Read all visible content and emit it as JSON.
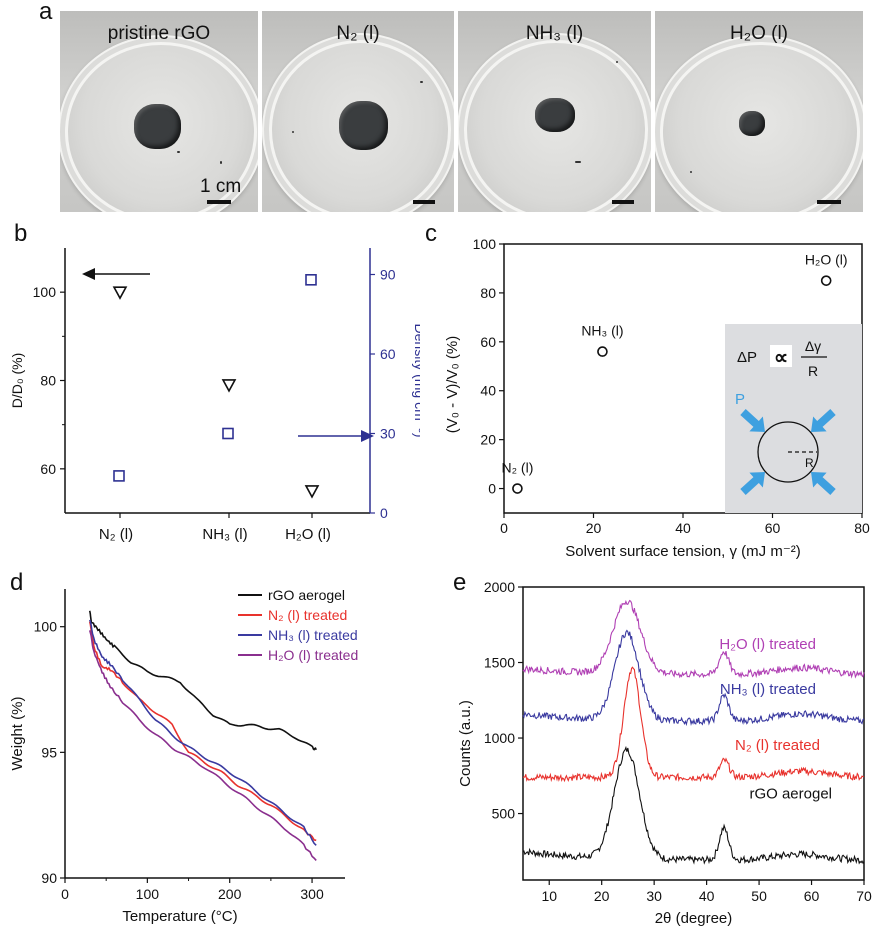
{
  "panel_a": {
    "label": "a",
    "photos": [
      {
        "title": "pristine rGO"
      },
      {
        "title": "N₂ (l)"
      },
      {
        "title": "NH₃ (l)"
      },
      {
        "title": "H₂O (l)"
      }
    ],
    "scale_bar_text": "1 cm",
    "colors": {
      "sample": "#3a3d3f",
      "background": "#c8c8c6"
    }
  },
  "panel_b": {
    "label": "b"
  },
  "panel_c": {
    "label": "c",
    "inset_formula": {
      "lhs": "ΔP",
      "numerator": "Δγ",
      "denominator": "R",
      "radius_label": "R",
      "pressure_label": "P"
    }
  },
  "panel_d": {
    "label": "d"
  },
  "panel_e": {
    "label": "e"
  },
  "chart_data": [
    {
      "id": "b",
      "type": "scatter",
      "categories": [
        "N₂ (l)",
        "NH₃ (l)",
        "H₂O (l)"
      ],
      "ylabel": "D/D₀ (%)",
      "ylabel_right": "Density (mg cm⁻³)",
      "ylim": [
        50,
        110
      ],
      "yticks": [
        60,
        80,
        100
      ],
      "ylim_right": [
        0,
        100
      ],
      "yticks_right": [
        0,
        30,
        60,
        90
      ],
      "series": [
        {
          "axis": "left",
          "marker": "triangle-down",
          "color": "#111111",
          "values": [
            100,
            79,
            55
          ]
        },
        {
          "axis": "right",
          "marker": "square",
          "color": "#2e3192",
          "values": [
            14,
            30,
            88
          ]
        }
      ],
      "arrows": [
        {
          "direction": "left",
          "color": "#111111"
        },
        {
          "direction": "right",
          "color": "#2e3192"
        }
      ]
    },
    {
      "id": "c",
      "type": "scatter",
      "xlabel": "Solvent surface tension, γ (mJ m⁻²)",
      "ylabel": "(V₀ - V)/V₀ (%)",
      "xlim": [
        0,
        80
      ],
      "ylim": [
        -10,
        100
      ],
      "xticks": [
        0,
        20,
        40,
        60,
        80
      ],
      "yticks": [
        0,
        20,
        40,
        60,
        80,
        100
      ],
      "points": [
        {
          "x": 3,
          "y": 0,
          "label": "N₂ (l)"
        },
        {
          "x": 22,
          "y": 56,
          "label": "NH₃ (l)"
        },
        {
          "x": 72,
          "y": 85,
          "label": "H₂O (l)"
        }
      ]
    },
    {
      "id": "d",
      "type": "line",
      "xlabel": "Temperature (°C)",
      "ylabel": "Weight (%)",
      "xlim": [
        0,
        340
      ],
      "ylim": [
        90,
        101.5
      ],
      "xticks": [
        0,
        100,
        200,
        300
      ],
      "yticks": [
        90,
        95,
        100
      ],
      "series": [
        {
          "name": "rGO aerogel",
          "color": "#111111",
          "x": [
            30,
            32,
            40,
            50,
            60,
            80,
            100,
            120,
            140,
            160,
            180,
            200,
            220,
            240,
            260,
            280,
            300,
            305
          ],
          "y": [
            100.6,
            100.2,
            99.9,
            99.5,
            99.2,
            98.6,
            98.2,
            98.0,
            97.8,
            97.1,
            96.5,
            96.1,
            96.1,
            96.0,
            95.9,
            95.6,
            95.2,
            95.1
          ]
        },
        {
          "name": "N₂ (l) treated",
          "color": "#e8322d",
          "x": [
            30,
            35,
            45,
            55,
            70,
            90,
            110,
            130,
            150,
            170,
            190,
            210,
            230,
            250,
            270,
            290,
            305
          ],
          "y": [
            100.2,
            99.2,
            98.4,
            98.3,
            97.8,
            97.1,
            96.6,
            96.1,
            95.0,
            94.6,
            94.2,
            93.7,
            93.3,
            92.9,
            92.4,
            91.9,
            91.5
          ]
        },
        {
          "name": "NH₃ (l) treated",
          "color": "#3a3aa0",
          "x": [
            30,
            35,
            45,
            55,
            70,
            90,
            110,
            130,
            150,
            170,
            190,
            210,
            230,
            250,
            270,
            290,
            305
          ],
          "y": [
            100.3,
            99.5,
            98.8,
            98.5,
            97.9,
            97.1,
            96.3,
            95.7,
            95.2,
            94.8,
            94.4,
            94.0,
            93.5,
            93.0,
            92.5,
            92.0,
            91.3
          ]
        },
        {
          "name": "H₂O (l) treated",
          "color": "#8a2f8e",
          "x": [
            30,
            35,
            45,
            55,
            70,
            90,
            110,
            130,
            150,
            170,
            190,
            210,
            230,
            250,
            270,
            290,
            305
          ],
          "y": [
            99.9,
            99.0,
            98.2,
            97.6,
            97.0,
            96.3,
            95.7,
            95.2,
            94.8,
            94.4,
            93.9,
            93.4,
            92.9,
            92.4,
            91.9,
            91.3,
            90.7
          ]
        }
      ]
    },
    {
      "id": "e",
      "type": "line",
      "xlabel": "2θ (degree)",
      "ylabel": "Counts (a.u.)",
      "xlim": [
        5,
        70
      ],
      "ylim": [
        60,
        2000
      ],
      "xticks": [
        10,
        20,
        30,
        40,
        50,
        60,
        70
      ],
      "yticks": [
        500,
        1000,
        1500,
        2000
      ],
      "series": [
        {
          "name": "rGO aerogel",
          "color": "#111111",
          "baseline": 190,
          "peak1": [
            24.8,
            720,
            2.4
          ],
          "peak2": [
            43.3,
            210,
            0.9
          ],
          "hump": [
            58,
            40,
            5
          ],
          "decay": 60
        },
        {
          "name": "N₂ (l) treated",
          "color": "#e8322d",
          "baseline": 740,
          "peak1": [
            25.8,
            720,
            1.6
          ],
          "peak2": [
            43.4,
            110,
            0.9
          ],
          "hump": [
            58,
            40,
            5
          ],
          "decay": 0
        },
        {
          "name": "NH₃ (l) treated",
          "color": "#3a3aa0",
          "baseline": 1110,
          "peak1": [
            24.8,
            580,
            2.3
          ],
          "peak2": [
            43.3,
            170,
            0.9
          ],
          "hump": [
            58,
            50,
            5
          ],
          "decay": 50
        },
        {
          "name": "H₂O (l) treated",
          "color": "#b040b4",
          "baseline": 1420,
          "peak1": [
            24.8,
            480,
            2.6
          ],
          "peak2": [
            43.3,
            150,
            0.9
          ],
          "hump": [
            58,
            45,
            5
          ],
          "decay": 40
        }
      ]
    }
  ]
}
